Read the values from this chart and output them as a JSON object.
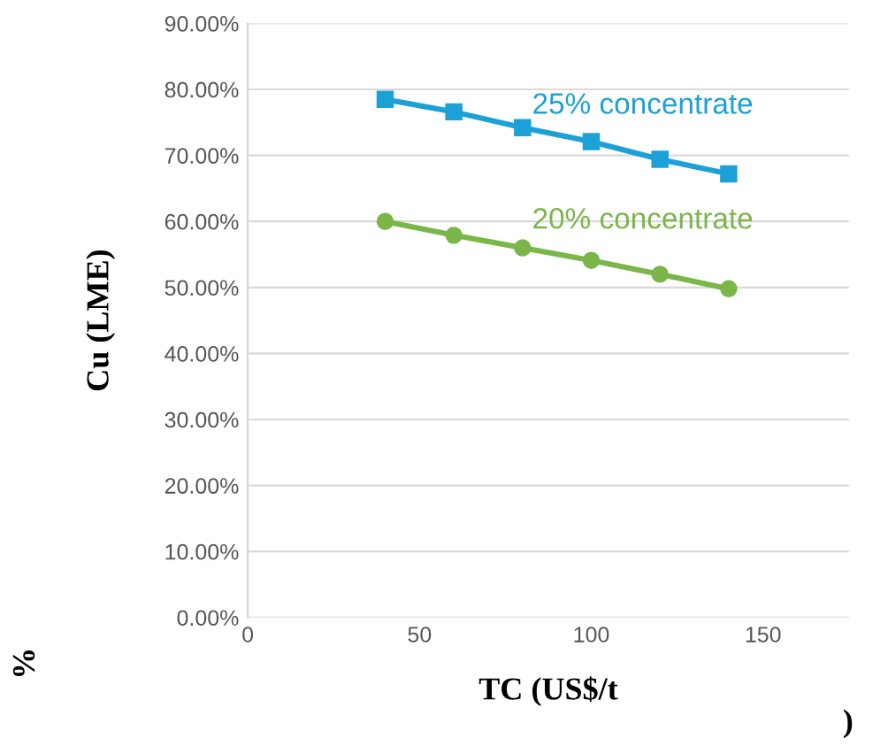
{
  "chart_data": {
    "type": "line",
    "xlabel": "TC (US$/t",
    "ylabel": "Cu (LME)",
    "annotations": [
      "%",
      ")"
    ],
    "x": [
      40,
      60,
      80,
      100,
      120,
      140
    ],
    "series": [
      {
        "name": "25% concentrate",
        "color": "#1ba1d8",
        "marker": "square",
        "values": [
          78.5,
          76.6,
          74.2,
          72.1,
          69.4,
          67.2
        ]
      },
      {
        "name": "20% concentrate",
        "color": "#7ab648",
        "marker": "circle",
        "values": [
          60.0,
          57.9,
          56.0,
          54.1,
          52.0,
          49.8
        ]
      }
    ],
    "xlim": [
      0,
      175
    ],
    "xticks": [
      0,
      50,
      100,
      150
    ],
    "ylim": [
      0,
      90
    ],
    "yticks": [
      {
        "value": 0,
        "label": "0.00%"
      },
      {
        "value": 10,
        "label": "10.00%"
      },
      {
        "value": 20,
        "label": "20.00%"
      },
      {
        "value": 30,
        "label": "30.00%"
      },
      {
        "value": 40,
        "label": "40.00%"
      },
      {
        "value": 50,
        "label": "50.00%"
      },
      {
        "value": 60,
        "label": "60.00%"
      },
      {
        "value": 70,
        "label": "70.00%"
      },
      {
        "value": 80,
        "label": "80.00%"
      },
      {
        "value": 90,
        "label": "90.00%"
      }
    ],
    "grid": "y",
    "legend": false,
    "line_style": "solid"
  }
}
